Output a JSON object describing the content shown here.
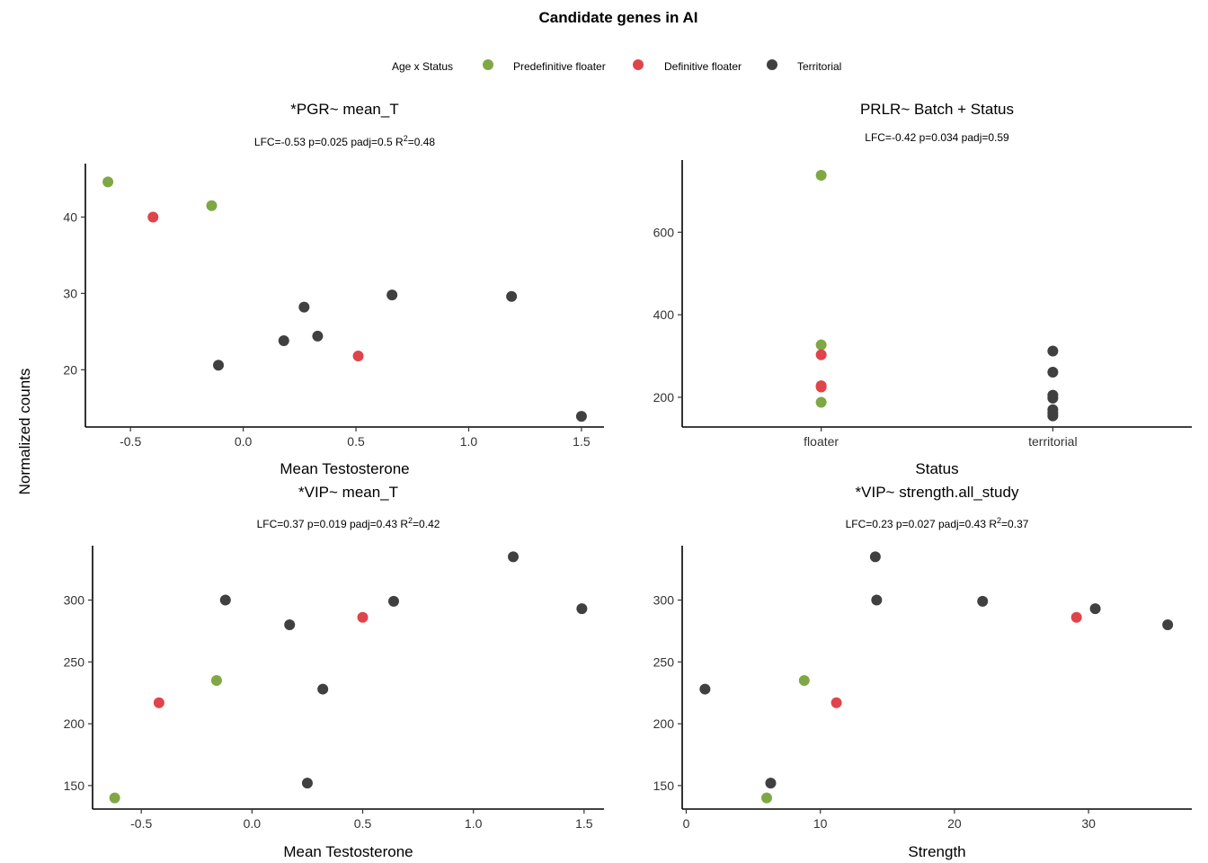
{
  "figure": {
    "title": "Candidate genes in AI",
    "y_label": "Normalized counts",
    "legend": {
      "title": "Age x Status",
      "items": [
        {
          "label": "Predefinitive floater",
          "color": "#7FA844"
        },
        {
          "label": "Definitive floater",
          "color": "#E0444B"
        },
        {
          "label": "Territorial",
          "color": "#404040"
        }
      ]
    }
  },
  "chart_data": [
    {
      "type": "scatter",
      "title": "*PGR~ mean_T",
      "subtitle_main": "LFC=-0.53 p=0.025 padj=0.5 R",
      "subtitle_sup": "2",
      "subtitle_tail": "=0.48",
      "xlabel": "Mean Testosterone",
      "xlim": [
        -0.7,
        1.6
      ],
      "ylim": [
        12.5,
        47
      ],
      "xticks": [
        -0.5,
        0.0,
        0.5,
        1.0,
        1.5
      ],
      "xtick_labels": [
        "-0.5",
        "0.0",
        "0.5",
        "1.0",
        "1.5"
      ],
      "yticks": [
        20,
        30,
        40
      ],
      "ytick_labels": [
        "20",
        "30",
        "40"
      ],
      "points": [
        {
          "x": -0.6,
          "y": 44.6,
          "group": 0
        },
        {
          "x": -0.14,
          "y": 41.5,
          "group": 0
        },
        {
          "x": -0.4,
          "y": 40.0,
          "group": 1
        },
        {
          "x": 0.51,
          "y": 21.8,
          "group": 1
        },
        {
          "x": -0.11,
          "y": 20.6,
          "group": 2
        },
        {
          "x": 0.18,
          "y": 23.8,
          "group": 2
        },
        {
          "x": 0.27,
          "y": 28.2,
          "group": 2
        },
        {
          "x": 0.33,
          "y": 24.4,
          "group": 2
        },
        {
          "x": 0.66,
          "y": 29.8,
          "group": 2
        },
        {
          "x": 1.19,
          "y": 29.6,
          "group": 2
        },
        {
          "x": 1.5,
          "y": 13.9,
          "group": 2
        }
      ]
    },
    {
      "type": "scatter",
      "title": "PRLR~ Batch + Status",
      "subtitle_main": "LFC=-0.42 p=0.034 padj=0.59",
      "subtitle_sup": "",
      "subtitle_tail": "",
      "xlabel": "Status",
      "xlim": [
        0.4,
        2.6
      ],
      "ylim": [
        128,
        775
      ],
      "xticks": [
        1,
        2
      ],
      "xtick_labels": [
        "floater",
        "territorial"
      ],
      "yticks": [
        200,
        400,
        600
      ],
      "ytick_labels": [
        "200",
        "400",
        "600"
      ],
      "points": [
        {
          "x": 1,
          "y": 738,
          "group": 0
        },
        {
          "x": 1,
          "y": 327,
          "group": 0
        },
        {
          "x": 1,
          "y": 188,
          "group": 0
        },
        {
          "x": 1,
          "y": 303,
          "group": 1
        },
        {
          "x": 1,
          "y": 228,
          "group": 1
        },
        {
          "x": 1,
          "y": 225,
          "group": 1
        },
        {
          "x": 2,
          "y": 312,
          "group": 2
        },
        {
          "x": 2,
          "y": 261,
          "group": 2
        },
        {
          "x": 2,
          "y": 205,
          "group": 2
        },
        {
          "x": 2,
          "y": 198,
          "group": 2
        },
        {
          "x": 2,
          "y": 170,
          "group": 2
        },
        {
          "x": 2,
          "y": 162,
          "group": 2
        },
        {
          "x": 2,
          "y": 155,
          "group": 2
        }
      ]
    },
    {
      "type": "scatter",
      "title": "*VIP~ mean_T",
      "subtitle_main": "LFC=0.37 p=0.019 padj=0.43 R",
      "subtitle_sup": "2",
      "subtitle_tail": "=0.42",
      "xlabel": "Mean Testosterone",
      "xlim": [
        -0.72,
        1.59
      ],
      "ylim": [
        131,
        344
      ],
      "xticks": [
        -0.5,
        0.0,
        0.5,
        1.0,
        1.5
      ],
      "xtick_labels": [
        "-0.5",
        "0.0",
        "0.5",
        "1.0",
        "1.5"
      ],
      "yticks": [
        150,
        200,
        250,
        300
      ],
      "ytick_labels": [
        "150",
        "200",
        "250",
        "300"
      ],
      "points": [
        {
          "x": -0.62,
          "y": 140,
          "group": 0
        },
        {
          "x": -0.16,
          "y": 235,
          "group": 0
        },
        {
          "x": -0.42,
          "y": 217,
          "group": 1
        },
        {
          "x": 0.5,
          "y": 286,
          "group": 1
        },
        {
          "x": -0.12,
          "y": 300,
          "group": 2
        },
        {
          "x": 0.17,
          "y": 280,
          "group": 2
        },
        {
          "x": 0.25,
          "y": 152,
          "group": 2
        },
        {
          "x": 0.32,
          "y": 228,
          "group": 2
        },
        {
          "x": 0.64,
          "y": 299,
          "group": 2
        },
        {
          "x": 1.18,
          "y": 335,
          "group": 2
        },
        {
          "x": 1.49,
          "y": 293,
          "group": 2
        }
      ]
    },
    {
      "type": "scatter",
      "title": "*VIP~ strength.all_study",
      "subtitle_main": "LFC=0.23 p=0.027 padj=0.43 R",
      "subtitle_sup": "2",
      "subtitle_tail": "=0.37",
      "xlabel": "Strength",
      "xlim": [
        -0.3,
        37.7
      ],
      "ylim": [
        131,
        344
      ],
      "xticks": [
        0,
        10,
        20,
        30
      ],
      "xtick_labels": [
        "0",
        "10",
        "20",
        "30"
      ],
      "yticks": [
        150,
        200,
        250,
        300
      ],
      "ytick_labels": [
        "150",
        "200",
        "250",
        "300"
      ],
      "points": [
        {
          "x": 6.0,
          "y": 140,
          "group": 0
        },
        {
          "x": 8.8,
          "y": 235,
          "group": 0
        },
        {
          "x": 11.2,
          "y": 217,
          "group": 1
        },
        {
          "x": 29.1,
          "y": 286,
          "group": 1
        },
        {
          "x": 1.4,
          "y": 228,
          "group": 2
        },
        {
          "x": 6.3,
          "y": 152,
          "group": 2
        },
        {
          "x": 14.1,
          "y": 335,
          "group": 2
        },
        {
          "x": 14.2,
          "y": 300,
          "group": 2
        },
        {
          "x": 22.1,
          "y": 299,
          "group": 2
        },
        {
          "x": 30.5,
          "y": 293,
          "group": 2
        },
        {
          "x": 35.9,
          "y": 280,
          "group": 2
        }
      ]
    }
  ]
}
